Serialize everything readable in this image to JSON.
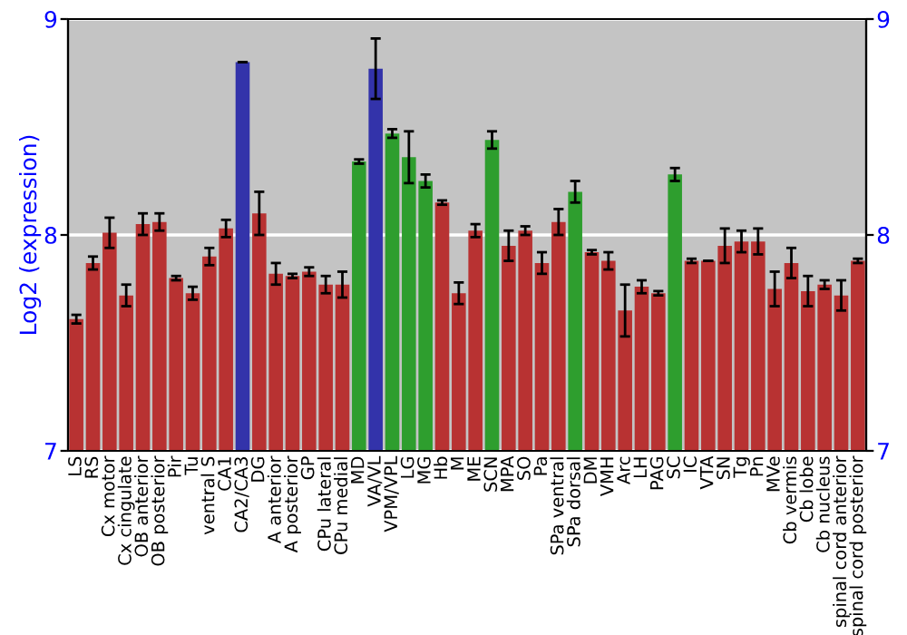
{
  "chart_data": {
    "type": "bar",
    "ylabel": "Log2 (expression)",
    "categories": [
      "LS",
      "RS",
      "Cx motor",
      "Cx cingulate",
      "OB anterior",
      "OB posterior",
      "Pir",
      "Tu",
      "ventral S",
      "CA1",
      "CA2/CA3",
      "DG",
      "A anterior",
      "A posterior",
      "GP",
      "CPu lateral",
      "CPu medial",
      "MD",
      "VA/VL",
      "VPM/VPL",
      "LG",
      "MG",
      "Hb",
      "M",
      "ME",
      "SCN",
      "MPA",
      "SO",
      "Pa",
      "SPa ventral",
      "SPa dorsal",
      "DM",
      "VMH",
      "Arc",
      "LH",
      "PAG",
      "SC",
      "IC",
      "VTA",
      "SN",
      "Tg",
      "Pn",
      "MVe",
      "Cb vermis",
      "Cb lobe",
      "Cb nucleus",
      "spinal cord anterior",
      "spinal cord posterior"
    ],
    "values": [
      7.61,
      7.87,
      8.01,
      7.72,
      8.05,
      8.06,
      7.8,
      7.73,
      7.9,
      8.03,
      8.8,
      8.1,
      7.82,
      7.81,
      7.83,
      7.77,
      7.77,
      8.34,
      8.77,
      8.47,
      8.36,
      8.25,
      8.15,
      7.73,
      8.02,
      8.44,
      7.95,
      8.02,
      7.87,
      8.06,
      8.2,
      7.92,
      7.88,
      7.65,
      7.76,
      7.73,
      8.28,
      7.88,
      7.88,
      7.95,
      7.97,
      7.97,
      7.75,
      7.87,
      7.74,
      7.77,
      7.72,
      7.88
    ],
    "errors": [
      0.02,
      0.03,
      0.07,
      0.05,
      0.05,
      0.04,
      0.01,
      0.03,
      0.04,
      0.04,
      0.0,
      0.1,
      0.05,
      0.01,
      0.02,
      0.04,
      0.06,
      0.01,
      0.14,
      0.02,
      0.12,
      0.03,
      0.01,
      0.05,
      0.03,
      0.04,
      0.07,
      0.02,
      0.05,
      0.06,
      0.05,
      0.01,
      0.04,
      0.12,
      0.03,
      0.01,
      0.03,
      0.01,
      0.0,
      0.08,
      0.05,
      0.06,
      0.08,
      0.07,
      0.07,
      0.02,
      0.07,
      0.01
    ],
    "colors": [
      "#b83232",
      "#b83232",
      "#b83232",
      "#b83232",
      "#b83232",
      "#b83232",
      "#b83232",
      "#b83232",
      "#b83232",
      "#b83232",
      "#3333aa",
      "#b83232",
      "#b83232",
      "#b83232",
      "#b83232",
      "#b83232",
      "#b83232",
      "#2e9e2e",
      "#3333aa",
      "#2e9e2e",
      "#2e9e2e",
      "#2e9e2e",
      "#b83232",
      "#b83232",
      "#b83232",
      "#2e9e2e",
      "#b83232",
      "#b83232",
      "#b83232",
      "#b83232",
      "#2e9e2e",
      "#b83232",
      "#b83232",
      "#b83232",
      "#b83232",
      "#b83232",
      "#2e9e2e",
      "#b83232",
      "#b83232",
      "#b83232",
      "#b83232",
      "#b83232",
      "#b83232",
      "#b83232",
      "#b83232",
      "#b83232",
      "#b83232",
      "#b83232"
    ],
    "ylim": [
      7,
      9
    ],
    "yticks": [
      7,
      8,
      9
    ],
    "y2lim": [
      7,
      9
    ],
    "y2ticks": [
      7,
      8,
      9
    ],
    "grid": "y"
  }
}
